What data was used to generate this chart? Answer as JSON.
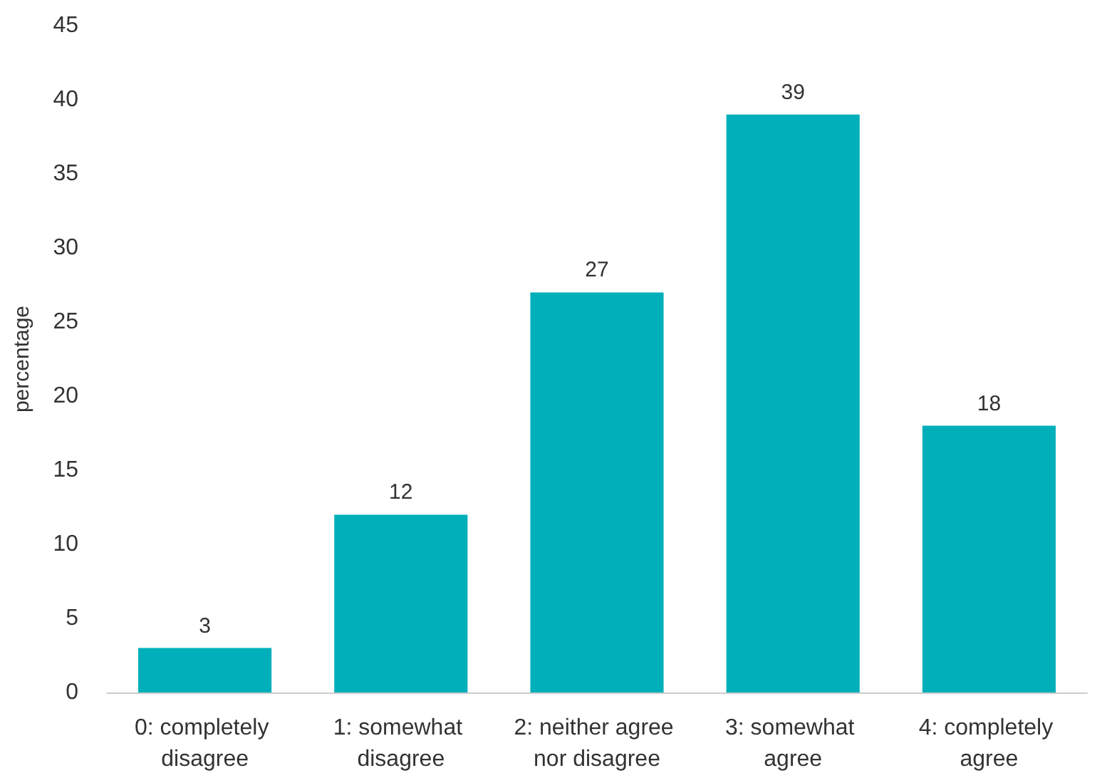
{
  "chart_data": {
    "type": "bar",
    "ylabel": "percentage",
    "categories": [
      "0: completely disagree",
      "1: somewhat disagree",
      "2: neither agree nor disagree",
      "3: somewhat agree",
      "4: completely agree"
    ],
    "values": [
      3,
      12,
      27,
      39,
      18
    ],
    "color": "#00afba",
    "ylim": [
      0,
      45
    ],
    "yticks": [
      0,
      5,
      10,
      15,
      20,
      25,
      30,
      35,
      40,
      45
    ],
    "grid": false,
    "data_labels": true
  }
}
